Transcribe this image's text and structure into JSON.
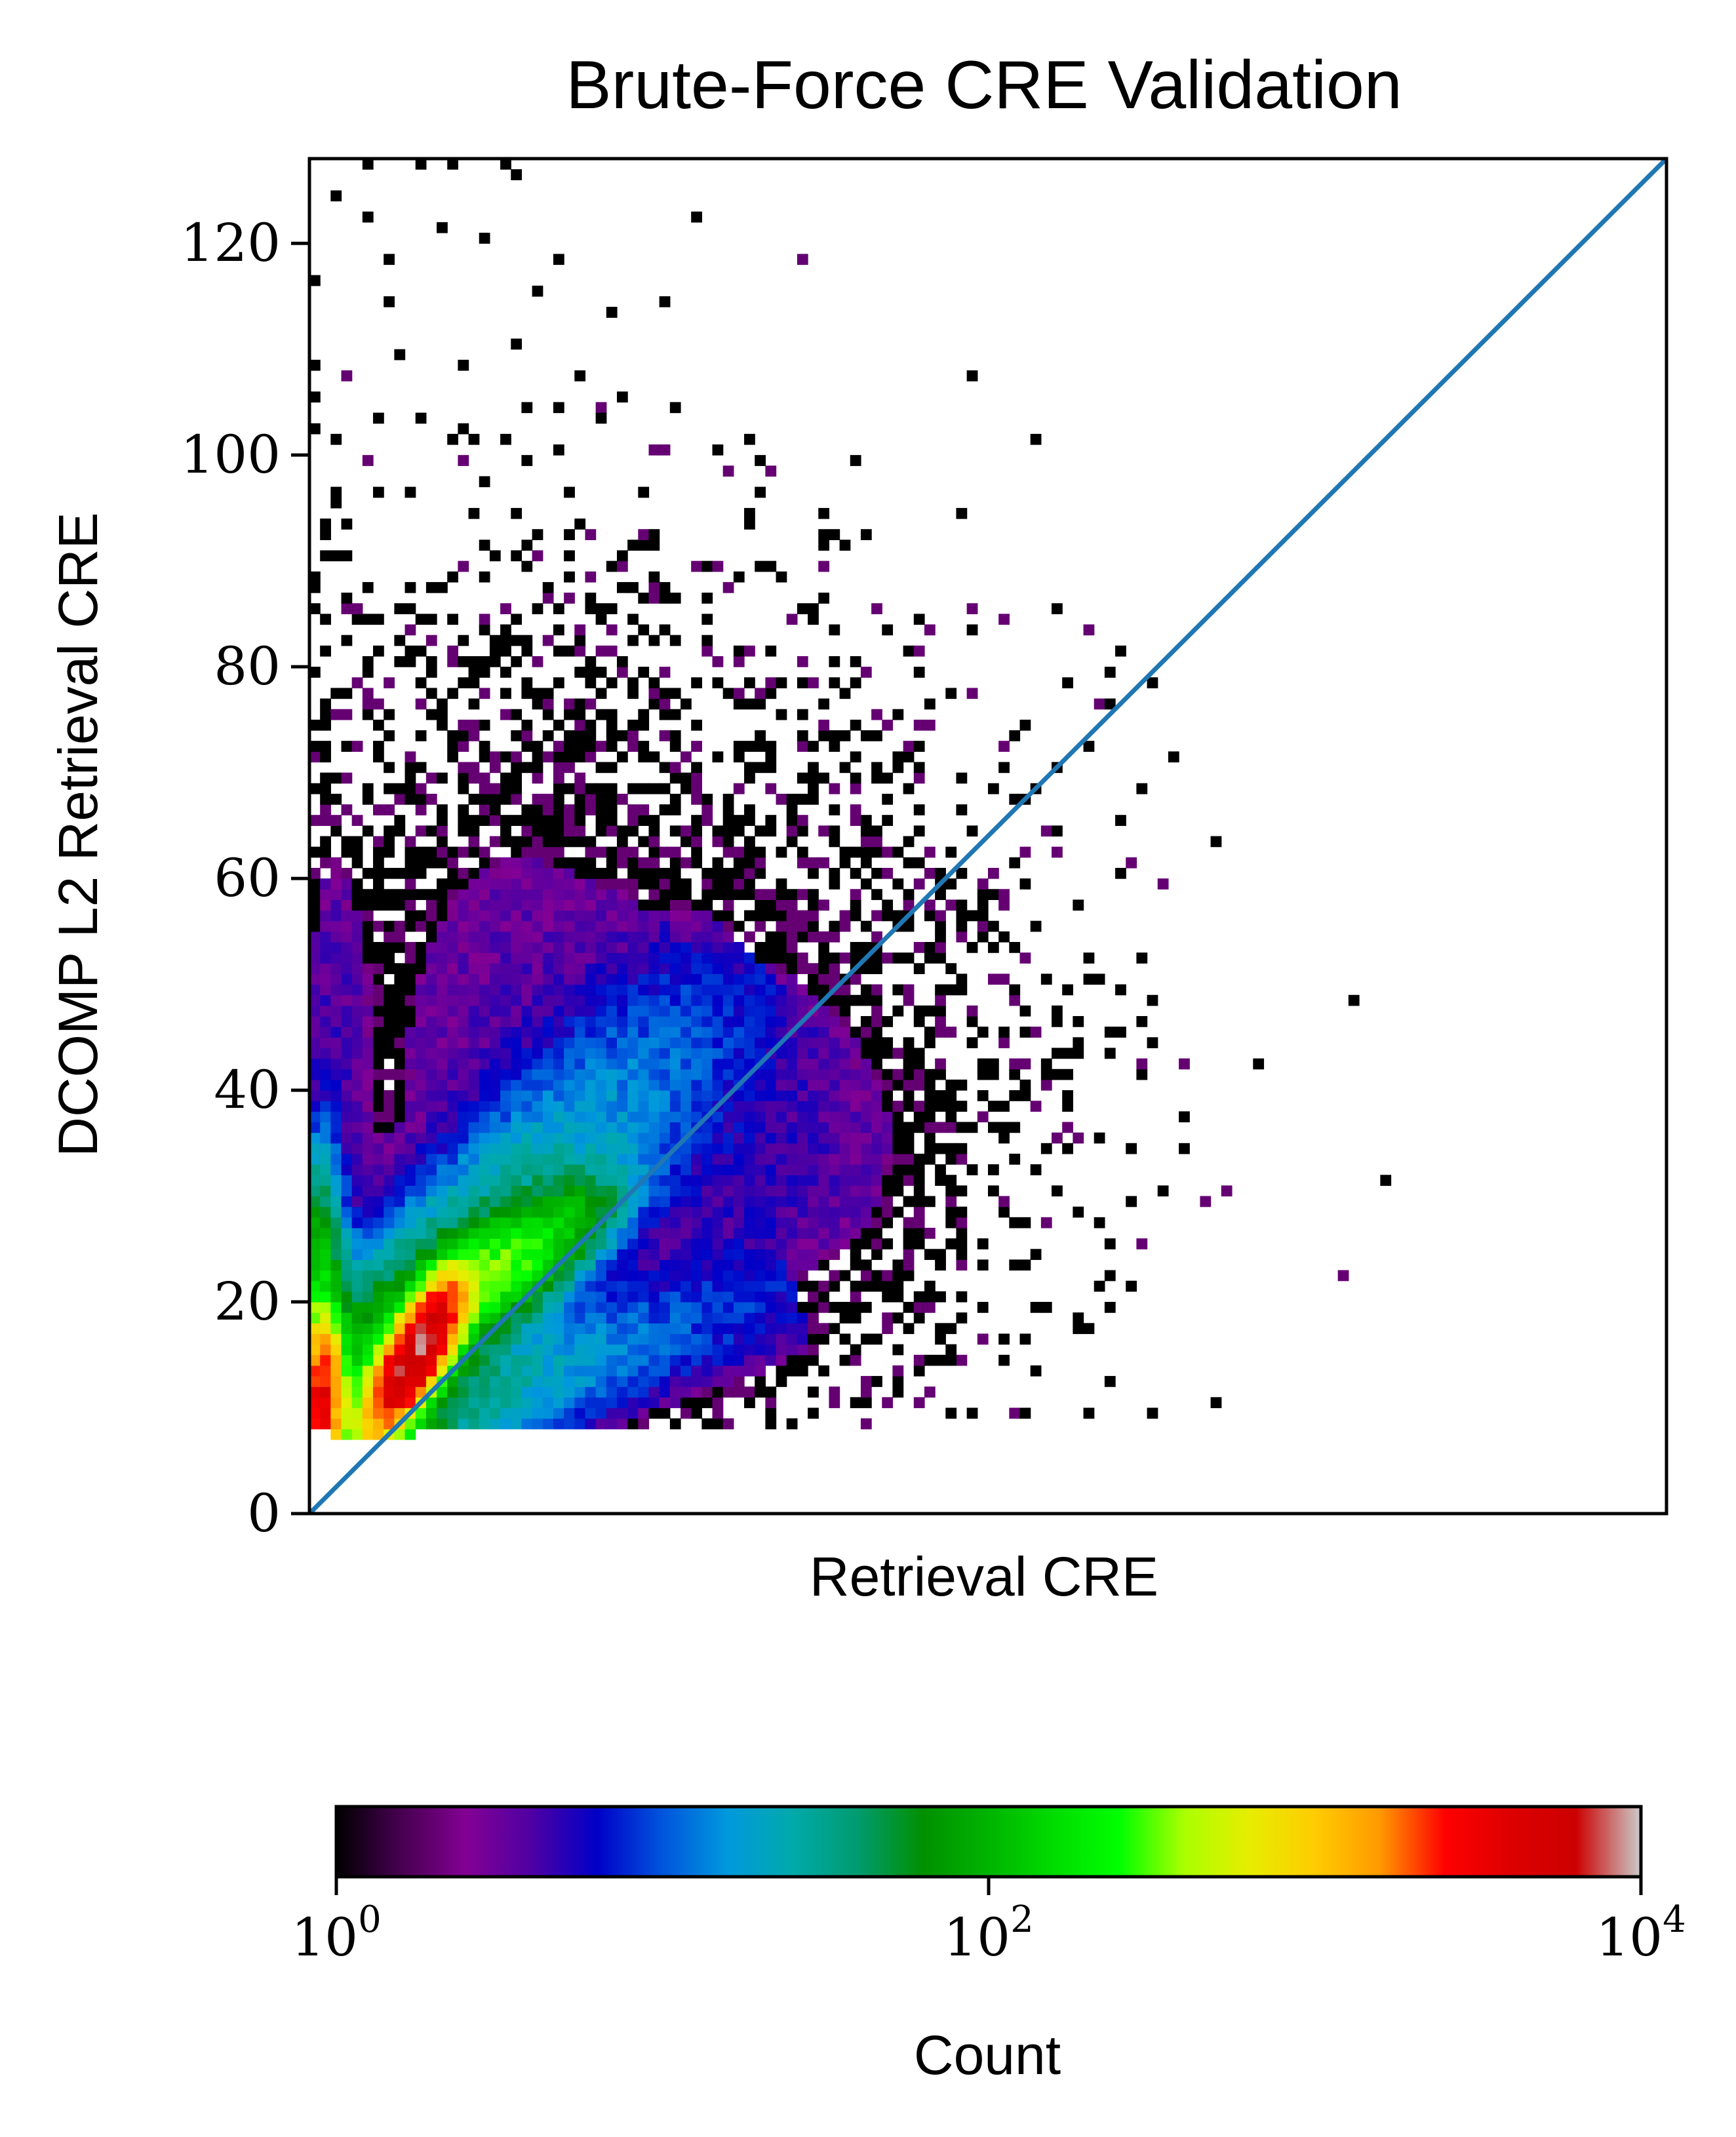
{
  "chart_data": {
    "type": "heatmap",
    "title": "Brute-Force CRE Validation",
    "xlabel": "Retrieval CRE",
    "ylabel": "DCOMP L2 Retrieval CRE",
    "xlim": [
      0,
      128
    ],
    "ylim": [
      0,
      128
    ],
    "x_ticks": [],
    "y_ticks": [
      0,
      20,
      40,
      60,
      80,
      100,
      120
    ],
    "bin_size": 1,
    "reference_line": {
      "from": [
        0,
        0
      ],
      "to": [
        128,
        128
      ],
      "color": "#1f77b4"
    },
    "colorbar": {
      "label": "Count",
      "scale": "log",
      "range": [
        1,
        10000
      ],
      "ticks": [
        {
          "value": 1,
          "base": "10",
          "exp": "0"
        },
        {
          "value": 100,
          "base": "10",
          "exp": "2"
        },
        {
          "value": 10000,
          "base": "10",
          "exp": "4"
        }
      ],
      "colormap": "nipy_spectral",
      "colormap_stops": [
        [
          0.0,
          "#000000"
        ],
        [
          0.05,
          "#470051"
        ],
        [
          0.1,
          "#830094"
        ],
        [
          0.15,
          "#4e00a3"
        ],
        [
          0.2,
          "#0000c8"
        ],
        [
          0.25,
          "#0055dd"
        ],
        [
          0.3,
          "#0099dd"
        ],
        [
          0.35,
          "#00aaaa"
        ],
        [
          0.4,
          "#009b6e"
        ],
        [
          0.45,
          "#009000"
        ],
        [
          0.5,
          "#00b400"
        ],
        [
          0.55,
          "#00dc00"
        ],
        [
          0.6,
          "#00ff00"
        ],
        [
          0.65,
          "#aaff00"
        ],
        [
          0.7,
          "#e7ed00"
        ],
        [
          0.75,
          "#ffcc00"
        ],
        [
          0.8,
          "#ff9900"
        ],
        [
          0.85,
          "#ff0000"
        ],
        [
          0.9,
          "#dd0000"
        ],
        [
          0.95,
          "#cc0000"
        ],
        [
          1.0,
          "#cccccc"
        ]
      ]
    },
    "density_components": [
      {
        "description": "main diagonal band",
        "x0": 0.5,
        "y0": 8.5,
        "x1": 42,
        "y1": 50,
        "half_width": 4.2,
        "peak_log10": 1.9,
        "length_decay": 0.055
      },
      {
        "description": "upper arm",
        "x0": 2,
        "y0": 10,
        "x1": 35,
        "y1": 52,
        "half_width": 4,
        "peak_log10": 2.0,
        "length_decay": 0.075
      },
      {
        "description": "lower arm",
        "x0": 5,
        "y0": 8.5,
        "x1": 44,
        "y1": 20,
        "half_width": 3.8,
        "peak_log10": 1.8,
        "length_decay": 0.065
      },
      {
        "description": "green core",
        "x": 18,
        "y": 23,
        "sx": 5,
        "sy": 4,
        "rho": 0.75,
        "peak_log10": 2.45
      },
      {
        "description": "hot spot",
        "x": 10,
        "y": 15,
        "sx": 2.2,
        "sy": 3.5,
        "rho": 0.75,
        "peak_log10": 3.9
      },
      {
        "description": "left edge hot spot",
        "x": 1.2,
        "y": 11,
        "sx": 1.0,
        "sy": 3.5,
        "rho": 0,
        "peak_log10": 3.5
      },
      {
        "description": "left edge column",
        "x": 0.8,
        "y": 16,
        "sx": 1.3,
        "sy": 8,
        "rho": 0,
        "peak_log10": 2.3
      },
      {
        "description": "left edge fringe",
        "x": 2,
        "y": 42,
        "sx": 2.5,
        "sy": 25,
        "rho": 0,
        "peak_log10": 0.4
      },
      {
        "description": "upper left scatter",
        "x": 15,
        "y": 50,
        "sx": 12,
        "sy": 22,
        "rho": 0.3,
        "peak_log10": 0.45
      },
      {
        "description": "scatter cloud",
        "x": 40,
        "y": 50,
        "sx": 16,
        "sy": 18,
        "rho": 0.2,
        "peak_log10": 0.3
      },
      {
        "description": "lower scatter",
        "x": 42,
        "y": 32,
        "sx": 14,
        "sy": 12,
        "rho": 0,
        "peak_log10": 0.55
      }
    ],
    "count_floor_y": 8,
    "isolated_points": [
      [
        85,
        63
      ],
      [
        63,
        56
      ],
      [
        76,
        49
      ],
      [
        72,
        46
      ],
      [
        89,
        42
      ],
      [
        70,
        41
      ],
      [
        77,
        34
      ],
      [
        101,
        31
      ],
      [
        74,
        21
      ],
      [
        75,
        19
      ],
      [
        73,
        9
      ],
      [
        79,
        9
      ],
      [
        85,
        10
      ],
      [
        67,
        9
      ],
      [
        62,
        9
      ],
      [
        57,
        10
      ],
      [
        61,
        18
      ],
      [
        80,
        30
      ],
      [
        60,
        14
      ],
      [
        48,
        20
      ],
      [
        70,
        30
      ],
      [
        5,
        127
      ],
      [
        10,
        127
      ],
      [
        13,
        127
      ],
      [
        18,
        127
      ],
      [
        19,
        126
      ],
      [
        2,
        124
      ],
      [
        5,
        122
      ],
      [
        12,
        121
      ],
      [
        16,
        120
      ],
      [
        23,
        118
      ],
      [
        7,
        118
      ],
      [
        28,
        113
      ],
      [
        33,
        114
      ],
      [
        7,
        114
      ],
      [
        19,
        110
      ],
      [
        14,
        108
      ],
      [
        0.5,
        108
      ],
      [
        0.5,
        105
      ],
      [
        0.5,
        102
      ],
      [
        2,
        101
      ],
      [
        6,
        103
      ],
      [
        10,
        103
      ],
      [
        13,
        101
      ],
      [
        18,
        101
      ],
      [
        20,
        104
      ],
      [
        29,
        105
      ],
      [
        27,
        103
      ],
      [
        23,
        100
      ],
      [
        20,
        99
      ],
      [
        2,
        95
      ],
      [
        1,
        93
      ],
      [
        9,
        96
      ],
      [
        25,
        93
      ],
      [
        24,
        92
      ],
      [
        30,
        91
      ],
      [
        41,
        94
      ],
      [
        48,
        94
      ],
      [
        49,
        92
      ],
      [
        48,
        91
      ],
      [
        41,
        93
      ],
      [
        44,
        88
      ],
      [
        37,
        86
      ],
      [
        33,
        87
      ],
      [
        27,
        85
      ],
      [
        26,
        88
      ],
      [
        20,
        89
      ],
      [
        16,
        88
      ],
      [
        5,
        87
      ],
      [
        11,
        87
      ],
      [
        8,
        82
      ],
      [
        3,
        82
      ],
      [
        1,
        84
      ],
      [
        15,
        80
      ],
      [
        18,
        81
      ],
      [
        26,
        79
      ],
      [
        25,
        75
      ],
      [
        31,
        74
      ],
      [
        42,
        73
      ],
      [
        49,
        73
      ],
      [
        55,
        70
      ],
      [
        56,
        68
      ],
      [
        53,
        63
      ],
      [
        56,
        63
      ],
      [
        50,
        77
      ],
      [
        36,
        78
      ],
      [
        31,
        72
      ],
      [
        42,
        70
      ],
      [
        37,
        67
      ],
      [
        36,
        64
      ]
    ]
  }
}
